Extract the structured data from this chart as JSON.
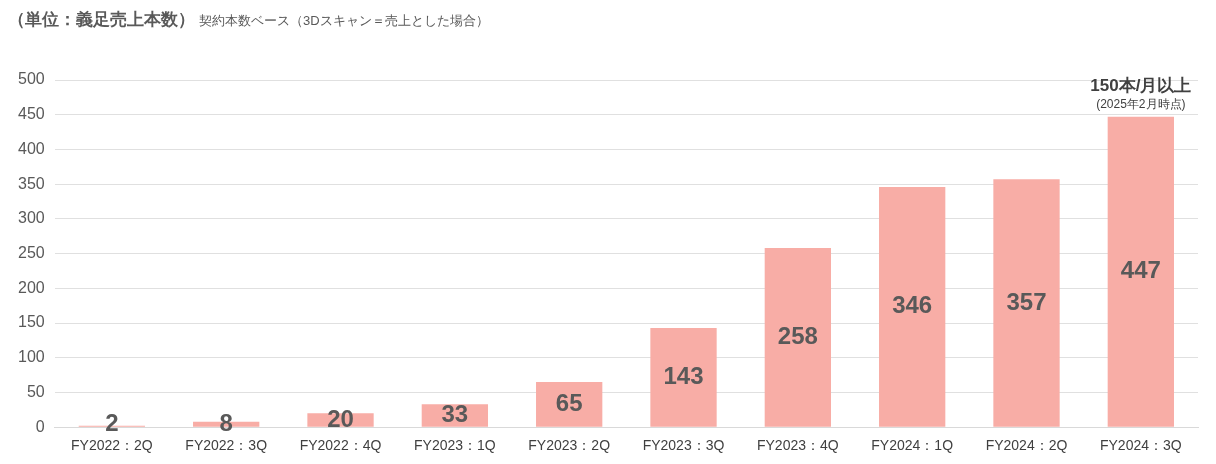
{
  "chart_data": {
    "type": "bar",
    "title": "（単位：義足売上本数）",
    "subtitle": "契約本数ベース（3Dスキャン＝売上とした場合）",
    "categories": [
      "FY2022：2Q",
      "FY2022：3Q",
      "FY2022：4Q",
      "FY2023：1Q",
      "FY2023：2Q",
      "FY2023：3Q",
      "FY2023：4Q",
      "FY2024：1Q",
      "FY2024：2Q",
      "FY2024：3Q"
    ],
    "values": [
      2,
      8,
      20,
      33,
      65,
      143,
      258,
      346,
      357,
      447
    ],
    "color": "#f8ada6",
    "ylim": [
      0,
      500
    ],
    "yticks": [
      0,
      50,
      100,
      150,
      200,
      250,
      300,
      350,
      400,
      450,
      500
    ],
    "grid": "y",
    "legend": false,
    "data_labels": true,
    "annotations": [
      {
        "text": "150本/月以上",
        "x": "FY2024：3Q",
        "y": 447
      },
      {
        "text": "(2025年2月時点)",
        "x": "FY2024：3Q",
        "y": 447
      }
    ]
  }
}
